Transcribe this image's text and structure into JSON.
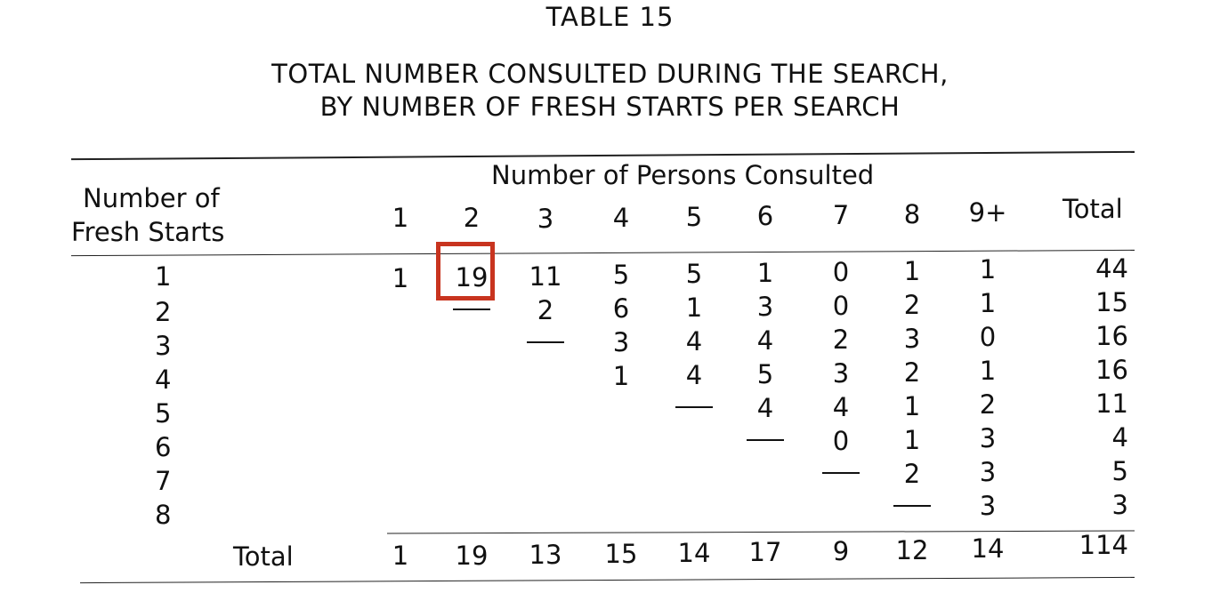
{
  "table_label": "TABLE 15",
  "title_line1": "TOTAL NUMBER CONSULTED DURING THE SEARCH,",
  "title_line2": "BY NUMBER OF FRESH STARTS PER SEARCH",
  "stub_header_line1": "Number of",
  "stub_header_line2": "Fresh Starts",
  "column_spanner": "Number of Persons Consulted",
  "columns": [
    "1",
    "2",
    "3",
    "4",
    "5",
    "6",
    "7",
    "8",
    "9+",
    "Total"
  ],
  "rows": [
    {
      "label": "1",
      "cells": [
        "1",
        "19",
        "11",
        "5",
        "5",
        "1",
        "0",
        "1",
        "1",
        "44"
      ]
    },
    {
      "label": "2",
      "cells": [
        "",
        "—",
        "2",
        "6",
        "1",
        "3",
        "0",
        "2",
        "1",
        "15"
      ]
    },
    {
      "label": "3",
      "cells": [
        "",
        "",
        "—",
        "3",
        "4",
        "4",
        "2",
        "3",
        "0",
        "16"
      ]
    },
    {
      "label": "4",
      "cells": [
        "",
        "",
        "",
        "1",
        "4",
        "5",
        "3",
        "2",
        "1",
        "16"
      ]
    },
    {
      "label": "5",
      "cells": [
        "",
        "",
        "",
        "",
        "—",
        "4",
        "4",
        "1",
        "2",
        "11"
      ]
    },
    {
      "label": "6",
      "cells": [
        "",
        "",
        "",
        "",
        "",
        "—",
        "0",
        "1",
        "3",
        "4"
      ]
    },
    {
      "label": "7",
      "cells": [
        "",
        "",
        "",
        "",
        "",
        "",
        "—",
        "2",
        "3",
        "5"
      ]
    },
    {
      "label": "8",
      "cells": [
        "",
        "",
        "",
        "",
        "",
        "",
        "",
        "—",
        "3",
        "3"
      ]
    }
  ],
  "total_label": "Total",
  "totals": [
    "1",
    "19",
    "13",
    "15",
    "14",
    "17",
    "9",
    "12",
    "14",
    "114"
  ],
  "highlight_color": "#c8341f"
}
